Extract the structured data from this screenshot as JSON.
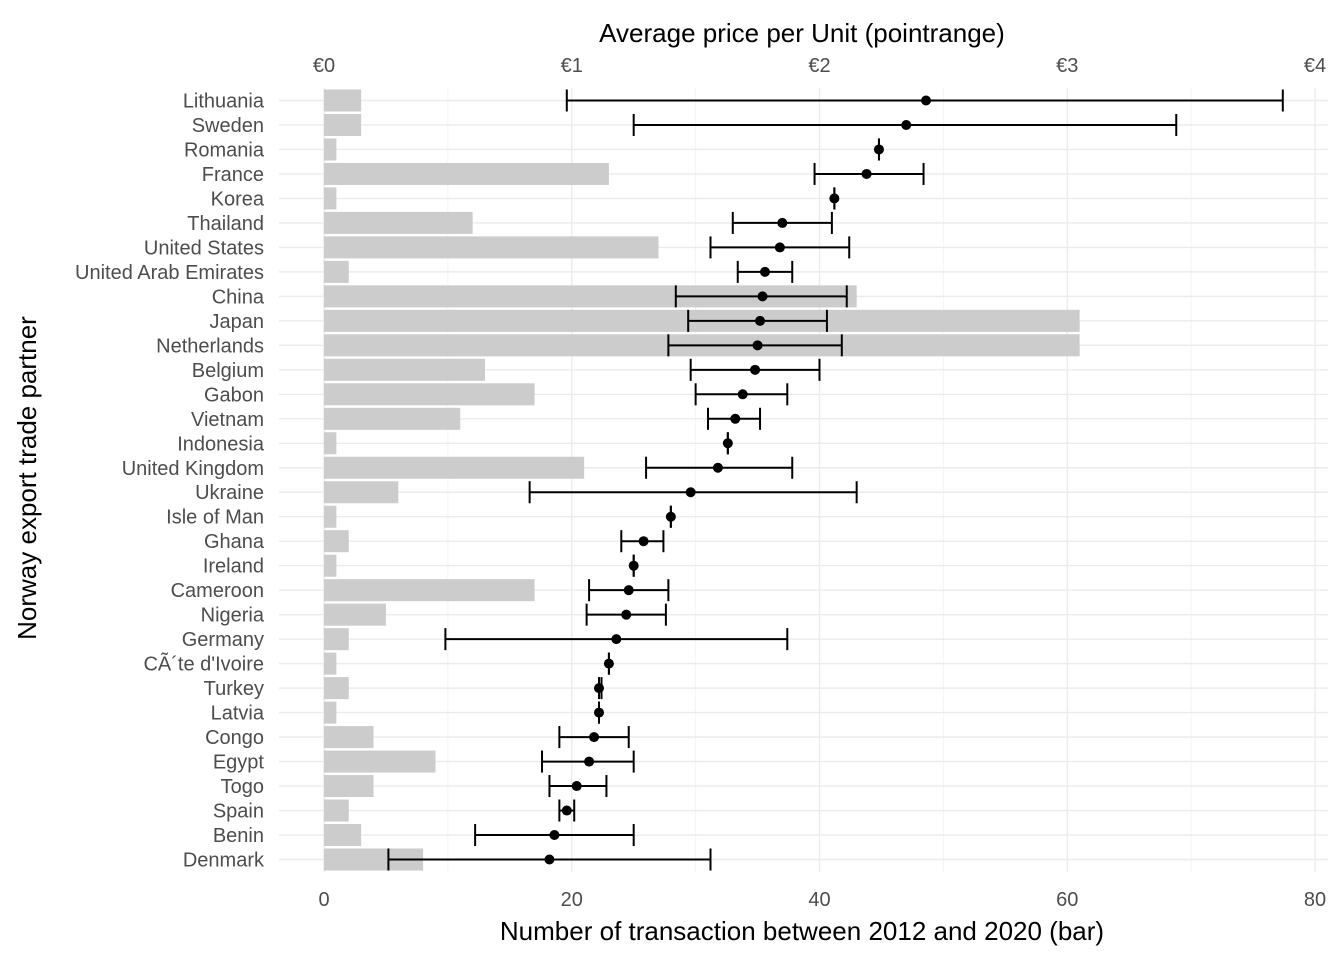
{
  "chart_data": {
    "type": "bar",
    "orientation": "horizontal",
    "overlay": "pointrange",
    "xlabel_bottom": "Number of transaction between 2012 and 2020 (bar)",
    "xlabel_top": "Average price per Unit (pointrange)",
    "ylabel": "Norway export trade partner",
    "x_bottom_ticks": [
      "0",
      "20",
      "40",
      "60",
      "80"
    ],
    "x_bottom_range": [
      0,
      80
    ],
    "x_top_ticks": [
      "€0",
      "€1",
      "€2",
      "€3",
      "€4"
    ],
    "x_top_range": [
      0,
      4
    ],
    "grid": true,
    "bar_color": "#cccccc",
    "point_color": "#000000",
    "rows": [
      {
        "country": "Lithuania",
        "transactions": 3,
        "price": 2.43,
        "price_min": 0.98,
        "price_max": 3.87
      },
      {
        "country": "Sweden",
        "transactions": 3,
        "price": 2.35,
        "price_min": 1.25,
        "price_max": 3.44
      },
      {
        "country": "Romania",
        "transactions": 1,
        "price": 2.24,
        "price_min": 2.24,
        "price_max": 2.24
      },
      {
        "country": "France",
        "transactions": 23,
        "price": 2.19,
        "price_min": 1.98,
        "price_max": 2.42
      },
      {
        "country": "Korea",
        "transactions": 1,
        "price": 2.06,
        "price_min": 2.06,
        "price_max": 2.06
      },
      {
        "country": "Thailand",
        "transactions": 12,
        "price": 1.85,
        "price_min": 1.65,
        "price_max": 2.05
      },
      {
        "country": "United States",
        "transactions": 27,
        "price": 1.84,
        "price_min": 1.56,
        "price_max": 2.12
      },
      {
        "country": "United Arab Emirates",
        "transactions": 2,
        "price": 1.78,
        "price_min": 1.67,
        "price_max": 1.89
      },
      {
        "country": "China",
        "transactions": 43,
        "price": 1.77,
        "price_min": 1.42,
        "price_max": 2.11
      },
      {
        "country": "Japan",
        "transactions": 61,
        "price": 1.76,
        "price_min": 1.47,
        "price_max": 2.03
      },
      {
        "country": "Netherlands",
        "transactions": 61,
        "price": 1.75,
        "price_min": 1.39,
        "price_max": 2.09
      },
      {
        "country": "Belgium",
        "transactions": 13,
        "price": 1.74,
        "price_min": 1.48,
        "price_max": 2.0
      },
      {
        "country": "Gabon",
        "transactions": 17,
        "price": 1.69,
        "price_min": 1.5,
        "price_max": 1.87
      },
      {
        "country": "Vietnam",
        "transactions": 11,
        "price": 1.66,
        "price_min": 1.55,
        "price_max": 1.76
      },
      {
        "country": "Indonesia",
        "transactions": 1,
        "price": 1.63,
        "price_min": 1.63,
        "price_max": 1.63
      },
      {
        "country": "United Kingdom",
        "transactions": 21,
        "price": 1.59,
        "price_min": 1.3,
        "price_max": 1.89
      },
      {
        "country": "Ukraine",
        "transactions": 6,
        "price": 1.48,
        "price_min": 0.83,
        "price_max": 2.15
      },
      {
        "country": "Isle of Man",
        "transactions": 1,
        "price": 1.4,
        "price_min": 1.4,
        "price_max": 1.4
      },
      {
        "country": "Ghana",
        "transactions": 2,
        "price": 1.29,
        "price_min": 1.2,
        "price_max": 1.37
      },
      {
        "country": "Ireland",
        "transactions": 1,
        "price": 1.25,
        "price_min": 1.25,
        "price_max": 1.25
      },
      {
        "country": "Cameroon",
        "transactions": 17,
        "price": 1.23,
        "price_min": 1.07,
        "price_max": 1.39
      },
      {
        "country": "Nigeria",
        "transactions": 5,
        "price": 1.22,
        "price_min": 1.06,
        "price_max": 1.38
      },
      {
        "country": "Germany",
        "transactions": 2,
        "price": 1.18,
        "price_min": 0.49,
        "price_max": 1.87
      },
      {
        "country": "CÃ´te d'Ivoire",
        "transactions": 1,
        "price": 1.15,
        "price_min": 1.15,
        "price_max": 1.15
      },
      {
        "country": "Turkey",
        "transactions": 2,
        "price": 1.11,
        "price_min": 1.11,
        "price_max": 1.12
      },
      {
        "country": "Latvia",
        "transactions": 1,
        "price": 1.11,
        "price_min": 1.11,
        "price_max": 1.11
      },
      {
        "country": "Congo",
        "transactions": 4,
        "price": 1.09,
        "price_min": 0.95,
        "price_max": 1.23
      },
      {
        "country": "Egypt",
        "transactions": 9,
        "price": 1.07,
        "price_min": 0.88,
        "price_max": 1.25
      },
      {
        "country": "Togo",
        "transactions": 4,
        "price": 1.02,
        "price_min": 0.91,
        "price_max": 1.14
      },
      {
        "country": "Spain",
        "transactions": 2,
        "price": 0.98,
        "price_min": 0.95,
        "price_max": 1.01
      },
      {
        "country": "Benin",
        "transactions": 3,
        "price": 0.93,
        "price_min": 0.61,
        "price_max": 1.25
      },
      {
        "country": "Denmark",
        "transactions": 8,
        "price": 0.91,
        "price_min": 0.26,
        "price_max": 1.56
      }
    ]
  }
}
